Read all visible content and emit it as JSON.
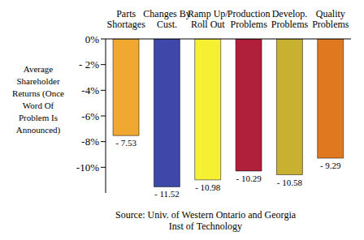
{
  "chart_data": {
    "type": "bar",
    "y_label": "Average Shareholder Returns (Once Word Of Problem Is Announced)",
    "source": "Source: Univ. of Western Ontario and Georgia Inst of Technology",
    "categories": [
      "Parts Shortages",
      "Changes By Cust.",
      "Ramp Up/ Roll Out",
      "Production Problems",
      "Develop. Problems",
      "Quality Problems"
    ],
    "values": [
      -7.53,
      -11.52,
      -10.98,
      -10.29,
      -10.58,
      -9.29
    ],
    "value_labels": [
      "- 7.53",
      "- 11.52",
      "- 10.98",
      "- 10.29",
      "- 10.58",
      "- 9.29"
    ],
    "colors": [
      "#f0a830",
      "#3f48a8",
      "#f5f032",
      "#b0203a",
      "#c8b030",
      "#e07820"
    ],
    "ylim": [
      -12,
      0
    ],
    "yticks": [
      {
        "value": 0,
        "label": "0%"
      },
      {
        "value": -2,
        "label": "- 2%"
      },
      {
        "value": -4,
        "label": "-4%"
      },
      {
        "value": -6,
        "label": "-6%"
      },
      {
        "value": -8,
        "label": "-8%"
      },
      {
        "value": -10,
        "label": "-10%"
      }
    ],
    "data_labels": true,
    "grid": false
  }
}
